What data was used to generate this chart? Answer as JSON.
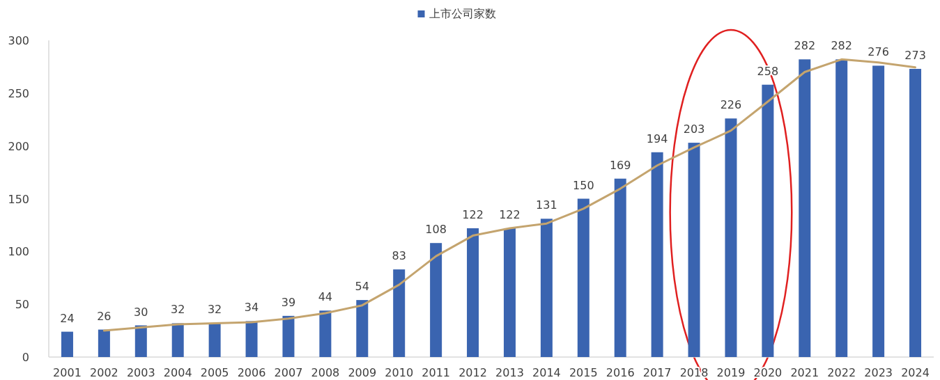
{
  "chart_data": {
    "type": "bar",
    "categories": [
      "2001",
      "2002",
      "2003",
      "2004",
      "2005",
      "2006",
      "2007",
      "2008",
      "2009",
      "2010",
      "2011",
      "2012",
      "2013",
      "2014",
      "2015",
      "2016",
      "2017",
      "2018",
      "2019",
      "2020",
      "2021",
      "2022",
      "2023",
      "2024"
    ],
    "series": [
      {
        "name": "上市公司家数",
        "color": "#3a64b0",
        "values": [
          24,
          26,
          30,
          32,
          32,
          34,
          39,
          44,
          54,
          83,
          108,
          122,
          122,
          131,
          150,
          169,
          194,
          203,
          226,
          258,
          282,
          282,
          276,
          273
        ],
        "value_labels": [
          "24",
          "26",
          "30",
          "32",
          "32",
          "34",
          "39",
          "44",
          "54",
          "83",
          "108",
          "122",
          "122",
          "131",
          "150",
          "169",
          "194",
          "203",
          "226",
          "258",
          "282",
          "282",
          "276",
          "273"
        ]
      },
      {
        "type": "line",
        "color": "#c4a46e",
        "values": [
          null,
          25,
          28,
          31,
          32,
          33,
          36.5,
          41.5,
          49,
          68.5,
          95.5,
          115,
          122,
          126.5,
          140.5,
          159.5,
          181.5,
          198.5,
          214.5,
          242,
          270,
          282,
          279,
          274.5
        ]
      }
    ],
    "ylim": [
      0,
      300
    ],
    "yticks": [
      0,
      50,
      100,
      150,
      200,
      250,
      300
    ],
    "grid": false,
    "legend": "top"
  }
}
